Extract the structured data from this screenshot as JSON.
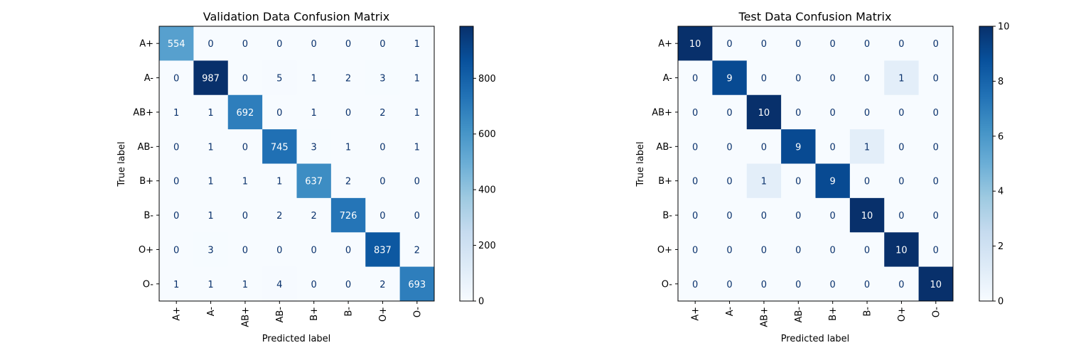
{
  "chart_data": [
    {
      "type": "heatmap",
      "title": "Validation Data Confusion Matrix",
      "xlabel": "Predicted label",
      "ylabel": "True label",
      "x_categories": [
        "A+",
        "A-",
        "AB+",
        "AB-",
        "B+",
        "B-",
        "O+",
        "O-"
      ],
      "y_categories": [
        "A+",
        "A-",
        "AB+",
        "AB-",
        "B+",
        "B-",
        "O+",
        "O-"
      ],
      "matrix": [
        [
          554,
          0,
          0,
          0,
          0,
          0,
          0,
          1
        ],
        [
          0,
          987,
          0,
          5,
          1,
          2,
          3,
          1
        ],
        [
          1,
          1,
          692,
          0,
          1,
          0,
          2,
          1
        ],
        [
          0,
          1,
          0,
          745,
          3,
          1,
          0,
          1
        ],
        [
          0,
          1,
          1,
          1,
          637,
          2,
          0,
          0
        ],
        [
          0,
          1,
          0,
          2,
          2,
          726,
          0,
          0
        ],
        [
          0,
          3,
          0,
          0,
          0,
          0,
          837,
          2
        ],
        [
          1,
          1,
          1,
          4,
          0,
          0,
          2,
          693
        ]
      ],
      "colormap": "Blues",
      "colorbar": {
        "min": 0,
        "max": 987,
        "ticks": [
          0,
          200,
          400,
          600,
          800
        ]
      }
    },
    {
      "type": "heatmap",
      "title": "Test Data Confusion Matrix",
      "xlabel": "Predicted label",
      "ylabel": "True label",
      "x_categories": [
        "A+",
        "A-",
        "AB+",
        "AB-",
        "B+",
        "B-",
        "O+",
        "O-"
      ],
      "y_categories": [
        "A+",
        "A-",
        "AB+",
        "AB-",
        "B+",
        "B-",
        "O+",
        "O-"
      ],
      "matrix": [
        [
          10,
          0,
          0,
          0,
          0,
          0,
          0,
          0
        ],
        [
          0,
          9,
          0,
          0,
          0,
          0,
          1,
          0
        ],
        [
          0,
          0,
          10,
          0,
          0,
          0,
          0,
          0
        ],
        [
          0,
          0,
          0,
          9,
          0,
          1,
          0,
          0
        ],
        [
          0,
          0,
          1,
          0,
          9,
          0,
          0,
          0
        ],
        [
          0,
          0,
          0,
          0,
          0,
          10,
          0,
          0
        ],
        [
          0,
          0,
          0,
          0,
          0,
          0,
          10,
          0
        ],
        [
          0,
          0,
          0,
          0,
          0,
          0,
          0,
          10
        ]
      ],
      "colormap": "Blues",
      "colorbar": {
        "min": 0,
        "max": 10,
        "ticks": [
          0,
          2,
          4,
          6,
          8,
          10
        ]
      }
    }
  ],
  "colors": {
    "text_light": "#ffffff",
    "text_dark": "#08306b",
    "axis": "#000000"
  }
}
